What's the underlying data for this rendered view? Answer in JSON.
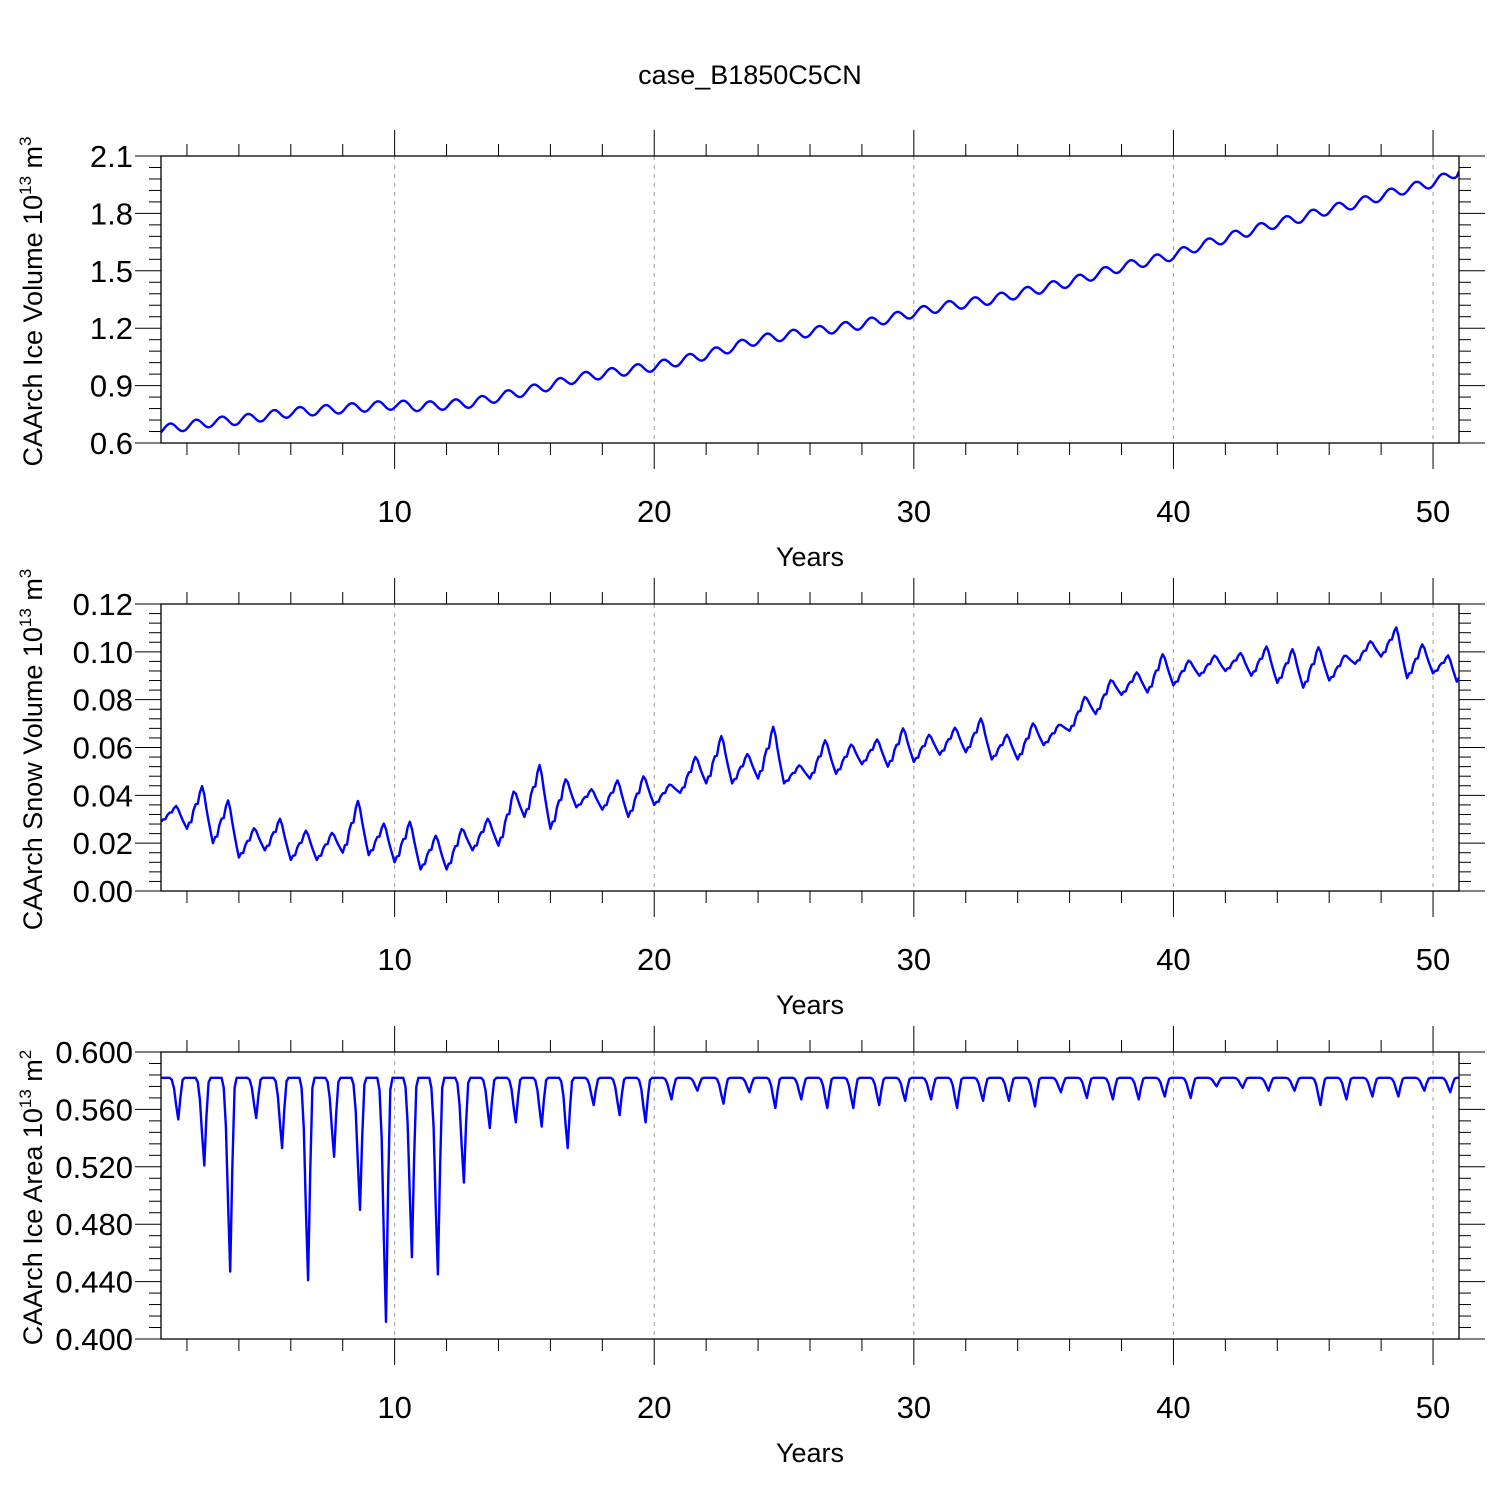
{
  "title": "case_B1850C5CN",
  "colors": {
    "line": "#0000ff",
    "frame": "#000000",
    "grid": "#9a9a9a"
  },
  "chart_data": [
    {
      "type": "line",
      "title": "case_B1850C5CN",
      "xlabel": "Years",
      "ylabel": "CAArch Ice Volume 10",
      "ylabel_exp": "13",
      "ylabel_unit": "m",
      "ylabel_unit_exp": "3",
      "xlim": [
        1,
        51
      ],
      "ylim": [
        0.6,
        2.1
      ],
      "x_ticks": [
        10,
        20,
        30,
        40,
        50
      ],
      "x_tick_labels": [
        "10",
        "20",
        "30",
        "40",
        "50"
      ],
      "y_ticks": [
        0.6,
        0.9,
        1.2,
        1.5,
        1.8,
        2.1
      ],
      "y_tick_labels": [
        "0.6",
        "0.9",
        "1.2",
        "1.5",
        "1.8",
        "2.1"
      ],
      "grid": "vertical dashed at major x ticks",
      "series": [
        {
          "name": "CAArch Ice Volume",
          "x": [
            1,
            2,
            3,
            4,
            5,
            6,
            7,
            8,
            9,
            10,
            11,
            12,
            13,
            14,
            15,
            16,
            17,
            18,
            19,
            20,
            21,
            22,
            23,
            24,
            25,
            26,
            27,
            28,
            29,
            30,
            31,
            32,
            33,
            34,
            35,
            36,
            37,
            38,
            39,
            40,
            41,
            42,
            43,
            44,
            45,
            46,
            47,
            48,
            49,
            50,
            51
          ],
          "values": [
            0.67,
            0.69,
            0.71,
            0.72,
            0.74,
            0.76,
            0.77,
            0.78,
            0.79,
            0.8,
            0.79,
            0.8,
            0.81,
            0.84,
            0.87,
            0.9,
            0.94,
            0.96,
            0.98,
            1.0,
            1.03,
            1.06,
            1.1,
            1.14,
            1.16,
            1.18,
            1.2,
            1.22,
            1.25,
            1.28,
            1.31,
            1.33,
            1.35,
            1.38,
            1.41,
            1.44,
            1.48,
            1.52,
            1.55,
            1.58,
            1.63,
            1.67,
            1.71,
            1.75,
            1.78,
            1.82,
            1.85,
            1.89,
            1.93,
            1.96,
            2.02
          ],
          "seasonal_amplitude": 0.025
        }
      ]
    },
    {
      "type": "line",
      "xlabel": "Years",
      "ylabel": "CAArch Snow Volume 10",
      "ylabel_exp": "13",
      "ylabel_unit": "m",
      "ylabel_unit_exp": "3",
      "xlim": [
        1,
        51
      ],
      "ylim": [
        0.0,
        0.12
      ],
      "x_ticks": [
        10,
        20,
        30,
        40,
        50
      ],
      "x_tick_labels": [
        "10",
        "20",
        "30",
        "40",
        "50"
      ],
      "y_ticks": [
        0.0,
        0.02,
        0.04,
        0.06,
        0.08,
        0.1,
        0.12
      ],
      "y_tick_labels": [
        "0.00",
        "0.02",
        "0.04",
        "0.06",
        "0.08",
        "0.10",
        "0.12"
      ],
      "grid": "vertical dashed at major x ticks",
      "series": [
        {
          "name": "CAArch Snow Volume",
          "x": [
            1,
            2,
            3,
            4,
            5,
            6,
            7,
            8,
            9,
            10,
            11,
            12,
            13,
            14,
            15,
            16,
            17,
            18,
            19,
            20,
            21,
            22,
            23,
            24,
            25,
            26,
            27,
            28,
            29,
            30,
            31,
            32,
            33,
            34,
            35,
            36,
            37,
            38,
            39,
            40,
            41,
            42,
            43,
            44,
            45,
            46,
            47,
            48,
            49,
            50,
            51
          ],
          "minima": [
            0.029,
            0.026,
            0.02,
            0.014,
            0.017,
            0.013,
            0.013,
            0.016,
            0.015,
            0.012,
            0.009,
            0.009,
            0.017,
            0.019,
            0.031,
            0.026,
            0.035,
            0.034,
            0.031,
            0.036,
            0.041,
            0.045,
            0.045,
            0.047,
            0.045,
            0.047,
            0.049,
            0.053,
            0.052,
            0.054,
            0.057,
            0.058,
            0.055,
            0.055,
            0.061,
            0.067,
            0.074,
            0.082,
            0.083,
            0.086,
            0.09,
            0.092,
            0.09,
            0.087,
            0.085,
            0.088,
            0.095,
            0.098,
            0.089,
            0.091,
            0.085
          ],
          "maxima": [
            0.036,
            0.045,
            0.039,
            0.027,
            0.031,
            0.026,
            0.025,
            0.039,
            0.029,
            0.03,
            0.024,
            0.027,
            0.031,
            0.043,
            0.054,
            0.048,
            0.043,
            0.047,
            0.049,
            0.045,
            0.057,
            0.066,
            0.058,
            0.07,
            0.053,
            0.064,
            0.062,
            0.064,
            0.069,
            0.066,
            0.069,
            0.073,
            0.066,
            0.071,
            0.07,
            0.082,
            0.089,
            0.092,
            0.1,
            0.097,
            0.099,
            0.1,
            0.103,
            0.102,
            0.103,
            0.099,
            0.105,
            0.111,
            0.104,
            0.099,
            0.09
          ]
        }
      ]
    },
    {
      "type": "line",
      "xlabel": "Years",
      "ylabel": "CAArch Ice Area 10",
      "ylabel_exp": "13",
      "ylabel_unit": "m",
      "ylabel_unit_exp": "2",
      "xlim": [
        1,
        51
      ],
      "ylim": [
        0.4,
        0.6
      ],
      "x_ticks": [
        10,
        20,
        30,
        40,
        50
      ],
      "x_tick_labels": [
        "10",
        "20",
        "30",
        "40",
        "50"
      ],
      "y_ticks": [
        0.4,
        0.44,
        0.48,
        0.52,
        0.56,
        0.6
      ],
      "y_tick_labels": [
        "0.400",
        "0.440",
        "0.480",
        "0.520",
        "0.560",
        "0.600"
      ],
      "grid": "vertical dashed at major x ticks",
      "series": [
        {
          "name": "CAArch Ice Area",
          "x": [
            1,
            2,
            3,
            4,
            5,
            6,
            7,
            8,
            9,
            10,
            11,
            12,
            13,
            14,
            15,
            16,
            17,
            18,
            19,
            20,
            21,
            22,
            23,
            24,
            25,
            26,
            27,
            28,
            29,
            30,
            31,
            32,
            33,
            34,
            35,
            36,
            37,
            38,
            39,
            40,
            41,
            42,
            43,
            44,
            45,
            46,
            47,
            48,
            49,
            50,
            51
          ],
          "plateau": [
            0.582,
            0.582,
            0.582,
            0.582,
            0.582,
            0.582,
            0.582,
            0.582,
            0.582,
            0.582,
            0.582,
            0.582,
            0.582,
            0.582,
            0.582,
            0.582,
            0.582,
            0.582,
            0.582,
            0.582,
            0.582,
            0.582,
            0.582,
            0.582,
            0.582,
            0.582,
            0.582,
            0.582,
            0.582,
            0.582,
            0.582,
            0.582,
            0.582,
            0.582,
            0.582,
            0.582,
            0.582,
            0.582,
            0.582,
            0.582,
            0.582,
            0.582,
            0.582,
            0.582,
            0.582,
            0.582,
            0.582,
            0.582,
            0.582,
            0.582,
            0.582
          ],
          "annual_minima": [
            0.553,
            0.521,
            0.447,
            0.554,
            0.533,
            0.441,
            0.527,
            0.49,
            0.412,
            0.457,
            0.445,
            0.509,
            0.547,
            0.551,
            0.548,
            0.533,
            0.563,
            0.556,
            0.551,
            0.567,
            0.573,
            0.564,
            0.572,
            0.561,
            0.567,
            0.561,
            0.561,
            0.563,
            0.566,
            0.567,
            0.561,
            0.566,
            0.566,
            0.562,
            0.572,
            0.568,
            0.567,
            0.567,
            0.569,
            0.568,
            0.576,
            0.575,
            0.573,
            0.573,
            0.563,
            0.567,
            0.569,
            0.569,
            0.573,
            0.572,
            0.573
          ]
        }
      ]
    }
  ]
}
